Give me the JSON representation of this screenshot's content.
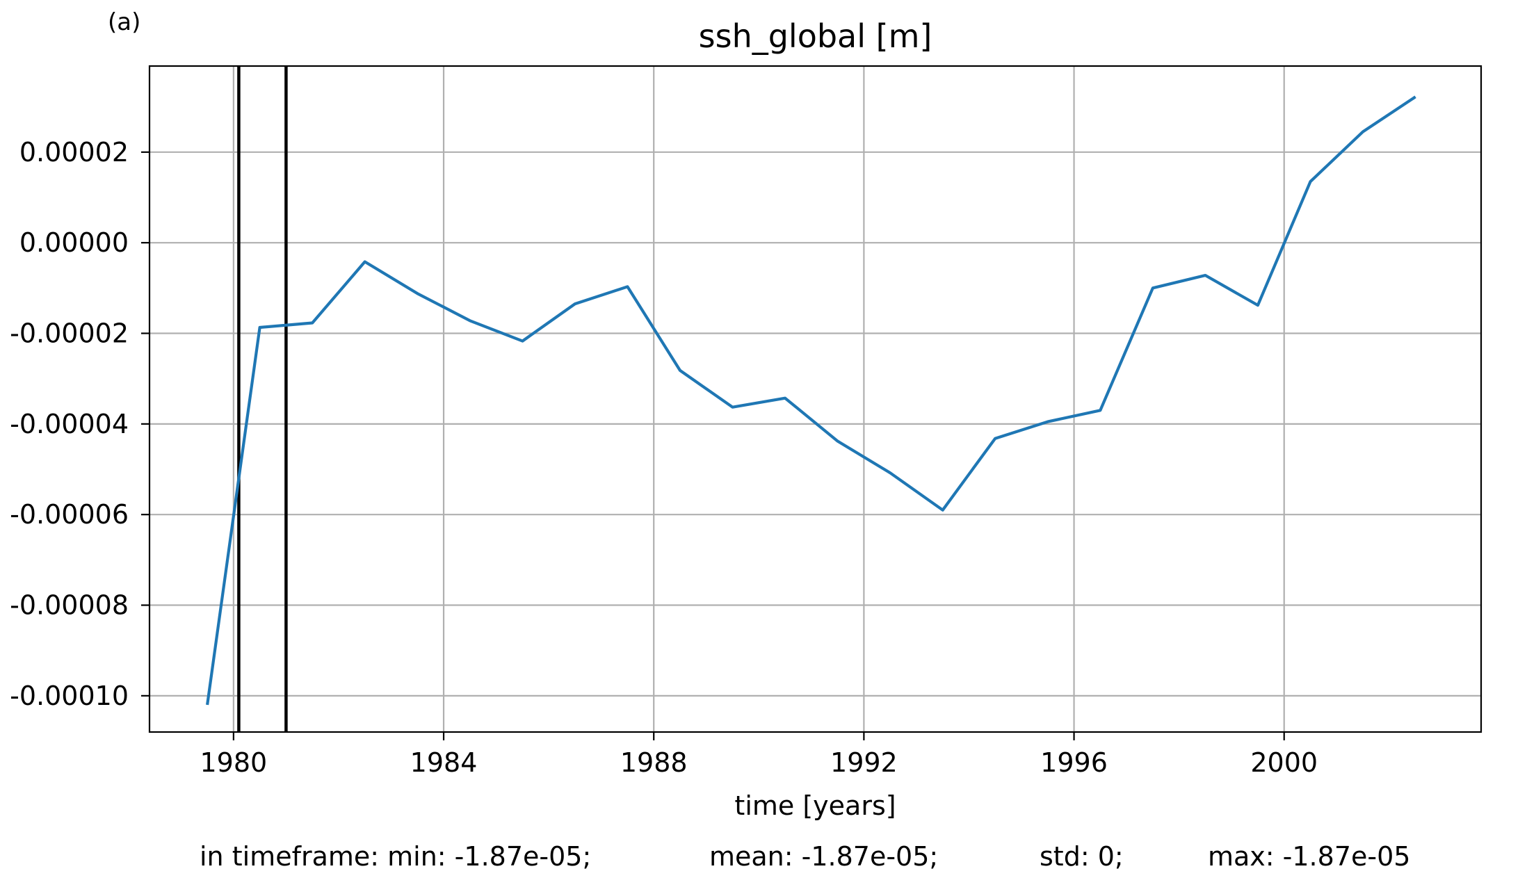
{
  "panel_label": "(a)",
  "stats": {
    "min": "in timeframe: min: -1.87e-05;",
    "mean": "mean: -1.87e-05;",
    "std": "std: 0;",
    "max": "max: -1.87e-05"
  },
  "chart_data": {
    "type": "line",
    "title": "ssh_global [m]",
    "xlabel": "time [years]",
    "ylabel": "",
    "xlim": [
      1978.4,
      2003.75
    ],
    "ylim": [
      -0.000108,
      3.9e-05
    ],
    "xticks": [
      1980,
      1984,
      1988,
      1992,
      1996,
      2000
    ],
    "xtick_labels": [
      "1980",
      "1984",
      "1988",
      "1992",
      "1996",
      "2000"
    ],
    "yticks": [
      2e-05,
      0.0,
      -2e-05,
      -4e-05,
      -6e-05,
      -8e-05,
      -0.0001
    ],
    "ytick_labels": [
      "0.00002",
      "0.00000",
      "-0.00002",
      "-0.00004",
      "-0.00006",
      "-0.00008",
      "-0.00010"
    ],
    "grid": true,
    "legend": "none",
    "line_color": "#1f77b4",
    "vertical_lines": [
      1980.1,
      1981.0
    ],
    "series": [
      {
        "x": [
          1979.5,
          1980.5,
          1981.5,
          1982.5,
          1983.5,
          1984.5,
          1985.5,
          1986.5,
          1987.5,
          1988.5,
          1989.5,
          1990.5,
          1991.5,
          1992.5,
          1993.5,
          1994.5,
          1995.5,
          1996.5,
          1997.5,
          1998.5,
          1999.5,
          2000.5,
          2001.5,
          2002.5
        ],
        "values": [
          -0.000102,
          -1.87e-05,
          -1.77e-05,
          -4.2e-06,
          -1.12e-05,
          -1.72e-05,
          -2.17e-05,
          -1.35e-05,
          -9.7e-06,
          -2.82e-05,
          -3.63e-05,
          -3.43e-05,
          -4.38e-05,
          -5.08e-05,
          -5.9e-05,
          -4.32e-05,
          -3.95e-05,
          -3.7e-05,
          -1e-05,
          -7.2e-06,
          -1.38e-05,
          1.35e-05,
          2.45e-05,
          3.22e-05
        ]
      }
    ]
  }
}
